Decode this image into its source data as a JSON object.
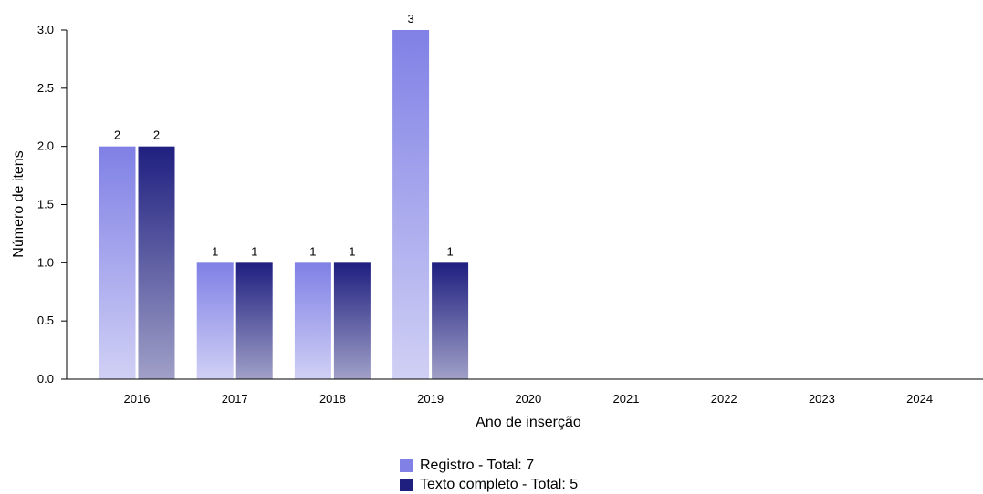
{
  "chart_data": {
    "type": "bar",
    "categories": [
      "2016",
      "2017",
      "2018",
      "2019",
      "2020",
      "2021",
      "2022",
      "2023",
      "2024"
    ],
    "series": [
      {
        "name": "Registro - Total: 7",
        "values": [
          2,
          1,
          1,
          3,
          0,
          0,
          0,
          0,
          0
        ],
        "color": "#8080e6"
      },
      {
        "name": "Texto completo - Total: 5",
        "values": [
          2,
          1,
          1,
          1,
          0,
          0,
          0,
          0,
          0
        ],
        "color": "#1f1f80"
      }
    ],
    "xlabel": "Ano de inserção",
    "ylabel": "Número de itens",
    "ylim": [
      0,
      3
    ],
    "yticks": [
      "0.0",
      "0.5",
      "1.0",
      "1.5",
      "2.0",
      "2.5",
      "3.0"
    ],
    "grid": false,
    "legend_position": "bottom-center"
  }
}
